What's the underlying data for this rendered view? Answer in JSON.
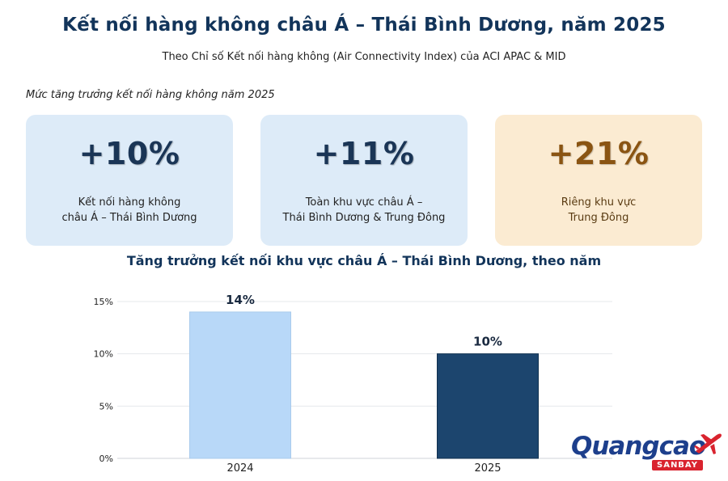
{
  "header": {
    "title": "Kết nối hàng không châu Á – Thái Bình Dương, năm 2025",
    "subtitle": "Theo Chỉ số Kết nối hàng không (Air Connectivity Index) của ACI APAC & MID"
  },
  "highlights": {
    "label": "Mức tăng trưởng kết nối hàng không năm 2025",
    "cards": [
      {
        "value": "+10%",
        "line1": "Kết nối hàng không",
        "line2": "châu Á – Thái Bình Dương",
        "color": "#ddebf8"
      },
      {
        "value": "+11%",
        "line1": "Toàn khu vực châu Á –",
        "line2": "Thái Bình Dương & Trung Đông",
        "color": "#ddebf8"
      },
      {
        "value": "+21%",
        "line1": "Riêng khu vực",
        "line2": "Trung Đông",
        "color": "#fbebd2"
      }
    ]
  },
  "chart_data": {
    "type": "bar",
    "title": "Tăng trưởng kết nối khu vực châu Á – Thái Bình Dương, theo năm",
    "categories": [
      "2024",
      "2025"
    ],
    "values": [
      14,
      10
    ],
    "value_labels": [
      "14%",
      "10%"
    ],
    "bar_colors": [
      "#b8d8f8",
      "#1c456e"
    ],
    "ylim": [
      0,
      15
    ],
    "yticks": [
      0,
      5,
      10,
      15
    ],
    "ytick_labels": [
      "0%",
      "5%",
      "10%",
      "15%"
    ],
    "grid": true,
    "xlabel": "",
    "ylabel": ""
  },
  "logo": {
    "main": "Quangcao",
    "sub": "SANBAY",
    "icon": "airplane-icon"
  }
}
